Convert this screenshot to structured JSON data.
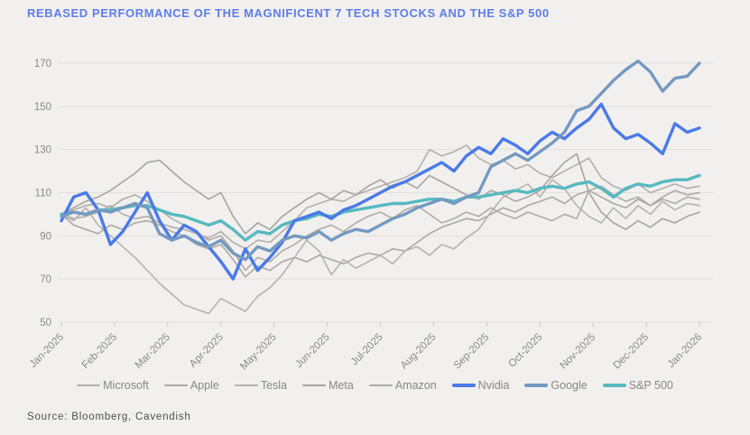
{
  "page": {
    "background": "#f1f0ee"
  },
  "header": {
    "title": "REBASED PERFORMANCE OF THE MAGNIFICENT 7 TECH STOCKS AND THE S&P 500",
    "title_color": "#5e7de8"
  },
  "source": {
    "label": "Source: Bloomberg, Cavendish"
  },
  "chart_data": {
    "type": "line",
    "title": "REBASED PERFORMANCE OF THE MAGNIFICENT 7 TECH STOCKS AND THE S&P 500",
    "xlabel": "",
    "ylabel": "",
    "x_labels": [
      "Jan-2025",
      "Feb-2025",
      "Mar-2025",
      "Apr-2025",
      "May-2025",
      "Jun-2025",
      "Jul-2025",
      "Aug-2025",
      "Sep-2025",
      "Oct-2025",
      "Nov-2025",
      "Dec-2025",
      "Jan-2026"
    ],
    "x_resolution": "weekly (53 points per series), rebased to 100 at Jan-2025",
    "ylim": [
      50,
      170
    ],
    "yticks": [
      50,
      70,
      90,
      110,
      130,
      150,
      170
    ],
    "grid": "horizontal",
    "legend_position": "bottom",
    "axis_color": "#8e8883",
    "gridline_color": "#e2e0dd",
    "tick_color": "#cdc9c5",
    "draw_order": [
      0,
      1,
      2,
      3,
      4,
      7,
      5,
      6
    ],
    "series": [
      {
        "name": "Microsoft",
        "color": "#b3aeab",
        "width": 1.6,
        "values": [
          100,
          98,
          99,
          101,
          104,
          100,
          98,
          99,
          96,
          94,
          93,
          91,
          89,
          92,
          87,
          84,
          88,
          87,
          92,
          97,
          103,
          105,
          107,
          106,
          109,
          111,
          113,
          115,
          117,
          120,
          130,
          127,
          129,
          132,
          126,
          123,
          125,
          121,
          123,
          119,
          117,
          120,
          123,
          126,
          117,
          113,
          111,
          114,
          110,
          112,
          114,
          112,
          113
        ]
      },
      {
        "name": "Apple",
        "color": "#aca7a3",
        "width": 1.6,
        "values": [
          100,
          95,
          93,
          91,
          95,
          93,
          96,
          97,
          95,
          92,
          90,
          86,
          84,
          86,
          79,
          71,
          76,
          74,
          78,
          80,
          78,
          81,
          79,
          77,
          80,
          82,
          81,
          84,
          83,
          87,
          91,
          94,
          96,
          98,
          97,
          100,
          103,
          101,
          104,
          106,
          108,
          105,
          109,
          111,
          108,
          105,
          103,
          107,
          104,
          108,
          111,
          109,
          110
        ]
      },
      {
        "name": "Tesla",
        "color": "#b7b2ae",
        "width": 1.6,
        "values": [
          100,
          97,
          103,
          95,
          90,
          85,
          80,
          74,
          68,
          63,
          58,
          56,
          54,
          61,
          58,
          55,
          62,
          66,
          72,
          80,
          88,
          83,
          72,
          79,
          75,
          78,
          81,
          77,
          83,
          85,
          81,
          86,
          84,
          89,
          93,
          101,
          108,
          111,
          114,
          108,
          116,
          112,
          104,
          99,
          96,
          103,
          98,
          104,
          100,
          106,
          102,
          105,
          104
        ]
      },
      {
        "name": "Meta",
        "color": "#a9a4a0",
        "width": 1.6,
        "values": [
          100,
          103,
          106,
          108,
          111,
          115,
          119,
          124,
          125,
          120,
          115,
          111,
          107,
          110,
          99,
          91,
          96,
          93,
          99,
          103,
          107,
          110,
          107,
          111,
          109,
          113,
          116,
          112,
          115,
          112,
          118,
          115,
          112,
          109,
          107,
          111,
          109,
          106,
          108,
          111,
          118,
          124,
          128,
          110,
          101,
          96,
          93,
          97,
          94,
          98,
          96,
          99,
          101
        ]
      },
      {
        "name": "Amazon",
        "color": "#b0aba7",
        "width": 1.6,
        "values": [
          100,
          102,
          104,
          105,
          103,
          107,
          109,
          106,
          102,
          98,
          95,
          92,
          88,
          90,
          83,
          74,
          80,
          78,
          83,
          86,
          90,
          93,
          95,
          92,
          96,
          99,
          101,
          98,
          102,
          104,
          100,
          96,
          98,
          101,
          99,
          103,
          100,
          98,
          101,
          99,
          97,
          100,
          98,
          111,
          113,
          109,
          106,
          108,
          104,
          107,
          105,
          108,
          107
        ]
      },
      {
        "name": "Nvidia",
        "color": "#4a79e8",
        "width": 3.4,
        "values": [
          97,
          108,
          110,
          102,
          86,
          92,
          101,
          110,
          97,
          88,
          95,
          92,
          85,
          78,
          70,
          84,
          74,
          80,
          87,
          97,
          99,
          101,
          98,
          102,
          104,
          107,
          110,
          113,
          115,
          118,
          121,
          124,
          120,
          127,
          131,
          128,
          135,
          132,
          128,
          134,
          138,
          135,
          140,
          144,
          151,
          140,
          135,
          137,
          133,
          128,
          142,
          138,
          140
        ]
      },
      {
        "name": "Google",
        "color": "#7499c0",
        "width": 3.4,
        "values": [
          99,
          101,
          100,
          102,
          101,
          103,
          105,
          103,
          91,
          88,
          90,
          87,
          85,
          88,
          82,
          79,
          85,
          83,
          88,
          90,
          89,
          92,
          88,
          91,
          93,
          92,
          95,
          98,
          100,
          103,
          105,
          107,
          105,
          108,
          110,
          122,
          125,
          128,
          125,
          129,
          133,
          138,
          148,
          150,
          156,
          162,
          167,
          171,
          166,
          157,
          163,
          164,
          170
        ]
      },
      {
        "name": "S&P 500",
        "color": "#57b9c0",
        "width": 3.4,
        "values": [
          100,
          101,
          100,
          102,
          102,
          103,
          104,
          104,
          102,
          100,
          99,
          97,
          95,
          97,
          93,
          88,
          92,
          91,
          95,
          97,
          98,
          100,
          99,
          101,
          102,
          103,
          104,
          105,
          105,
          106,
          107,
          107,
          106,
          108,
          108,
          109,
          110,
          111,
          110,
          112,
          113,
          112,
          114,
          115,
          112,
          108,
          112,
          114,
          113,
          115,
          116,
          116,
          118
        ]
      }
    ]
  }
}
